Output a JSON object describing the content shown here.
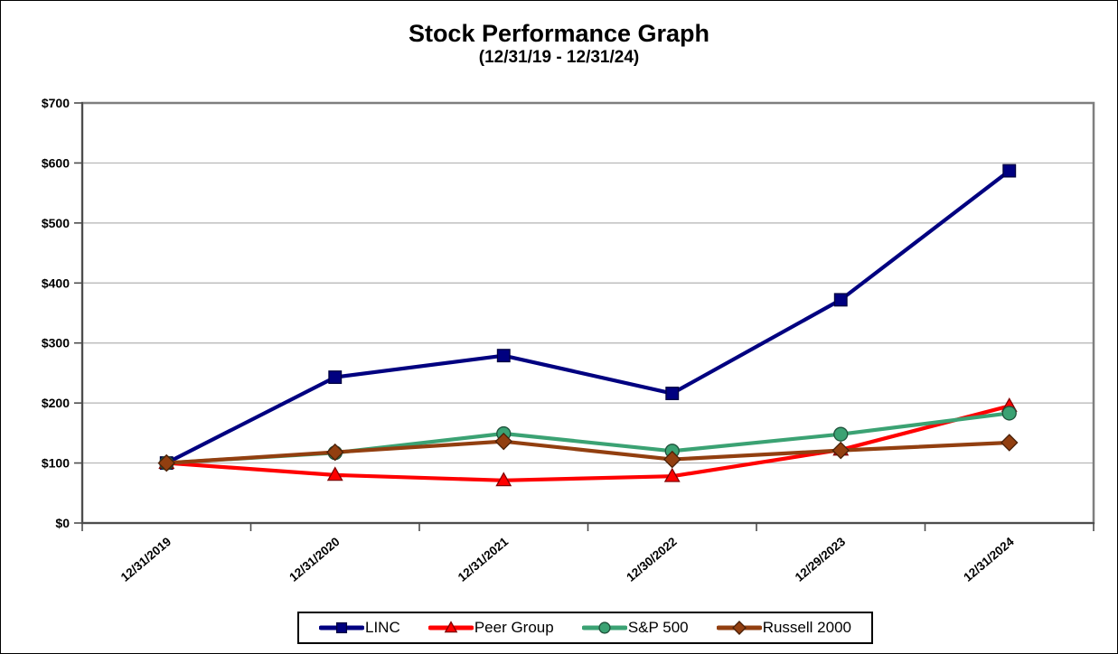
{
  "chart_data": {
    "type": "line",
    "title": "Stock Performance Graph",
    "subtitle": "(12/31/19 - 12/31/24)",
    "categories": [
      "12/31/2019",
      "12/31/2020",
      "12/31/2021",
      "12/30/2022",
      "12/29/2023",
      "12/31/2024"
    ],
    "series": [
      {
        "name": "LINC",
        "marker": "square",
        "color": "#000080",
        "values": [
          100,
          243,
          279,
          216,
          372,
          587
        ]
      },
      {
        "name": "Peer Group",
        "marker": "triangle",
        "color": "#FF0000",
        "values": [
          100,
          80,
          71,
          78,
          122,
          195
        ]
      },
      {
        "name": "S&P 500",
        "marker": "circle",
        "color": "#3BA273",
        "values": [
          100,
          117,
          149,
          120,
          148,
          183
        ]
      },
      {
        "name": "Russell 2000",
        "marker": "diamond",
        "color": "#923F10",
        "values": [
          100,
          118,
          136,
          106,
          121,
          134
        ]
      }
    ],
    "ylim": [
      0,
      700
    ],
    "ytick_step": 100,
    "ytick_labels": [
      "$0",
      "$100",
      "$200",
      "$300",
      "$400",
      "$500",
      "$600",
      "$700"
    ],
    "grid": "horizontal",
    "legend_position": "bottom",
    "colors": {
      "gridline": "#b3b3b3",
      "frame": "#7f7f7f",
      "axis": "#4d4d4d",
      "background": "#ffffff"
    }
  }
}
